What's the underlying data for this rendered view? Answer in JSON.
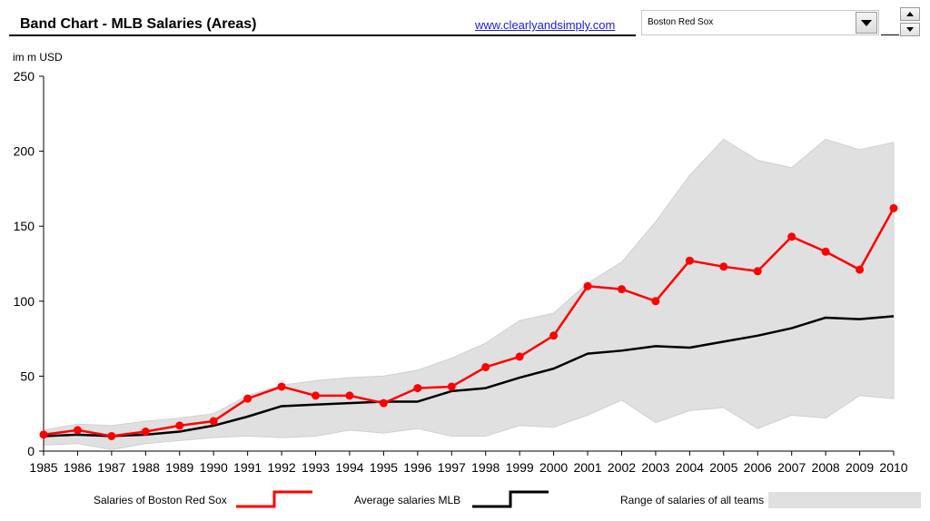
{
  "header": {
    "title": "Band Chart - MLB Salaries (Areas)",
    "link_text": "www.clearlyandsimply.com"
  },
  "team_selector": {
    "selected": "Boston Red Sox"
  },
  "chart_data": {
    "type": "area",
    "unit_label": "im m USD",
    "categories": [
      "1985",
      "1986",
      "1987",
      "1988",
      "1989",
      "1990",
      "1991",
      "1992",
      "1993",
      "1994",
      "1995",
      "1996",
      "1997",
      "1998",
      "1999",
      "2000",
      "2001",
      "2002",
      "2003",
      "2004",
      "2005",
      "2006",
      "2007",
      "2008",
      "2009",
      "2010"
    ],
    "ylim": [
      0,
      250
    ],
    "yticks": [
      "0",
      "50",
      "100",
      "150",
      "200",
      "250"
    ],
    "band": {
      "name": "Range of salaries of all teams",
      "color": "#e0e0e0",
      "low": [
        4,
        5,
        1,
        5,
        7,
        9,
        10,
        9,
        10,
        14,
        12,
        15,
        10,
        10,
        17,
        16,
        24,
        34,
        19,
        27,
        29,
        15,
        24,
        22,
        37,
        35
      ],
      "high": [
        14,
        18,
        17,
        20,
        22,
        25,
        37,
        44,
        47,
        49,
        50,
        54,
        62,
        72,
        87,
        92,
        112,
        126,
        153,
        184,
        208,
        194,
        189,
        208,
        201,
        206
      ]
    },
    "series": [
      {
        "name": "Salaries of Boston Red Sox",
        "color": "#ff0000",
        "markers": true,
        "values": [
          11,
          14,
          10,
          13,
          17,
          20,
          35,
          43,
          37,
          37,
          32,
          42,
          43,
          56,
          63,
          77,
          110,
          108,
          100,
          127,
          123,
          120,
          143,
          133,
          121,
          162
        ]
      },
      {
        "name": "Average salaries MLB",
        "color": "#000000",
        "markers": false,
        "values": [
          10,
          11,
          10,
          11,
          13,
          17,
          23,
          30,
          31,
          32,
          33,
          33,
          40,
          42,
          49,
          55,
          65,
          67,
          70,
          69,
          73,
          77,
          82,
          89,
          88,
          90
        ]
      }
    ],
    "legend": {
      "position": "bottom"
    }
  }
}
